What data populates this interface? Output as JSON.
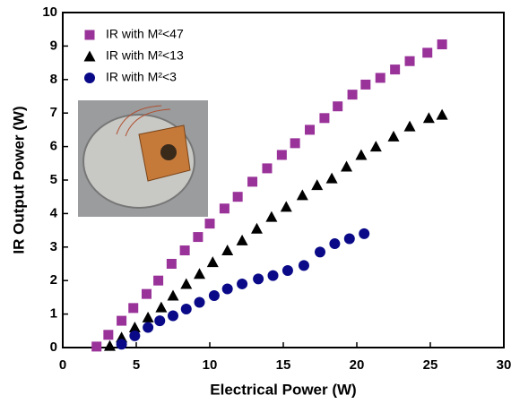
{
  "chart_data": {
    "type": "scatter",
    "xlabel": "Electrical Power (W)",
    "ylabel": "IR Output Power (W)",
    "xlim": [
      0,
      30
    ],
    "ylim": [
      0,
      10
    ],
    "xticks": [
      0,
      5,
      10,
      15,
      20,
      25,
      30
    ],
    "yticks": [
      0,
      1,
      2,
      3,
      4,
      5,
      6,
      7,
      8,
      9,
      10
    ],
    "legend": "upper left",
    "series": [
      {
        "name": "IR with M²<47",
        "color": "#993399",
        "marker": "square",
        "x": [
          2.3,
          3.1,
          4.0,
          4.8,
          5.7,
          6.5,
          7.4,
          8.3,
          9.2,
          10.0,
          11.0,
          11.9,
          12.9,
          13.9,
          14.9,
          15.8,
          16.8,
          17.8,
          18.7,
          19.7,
          20.6,
          21.6,
          22.6,
          23.6,
          24.8,
          25.8
        ],
        "values": [
          0.03,
          0.38,
          0.8,
          1.18,
          1.6,
          2.0,
          2.5,
          2.9,
          3.3,
          3.7,
          4.15,
          4.5,
          4.95,
          5.35,
          5.75,
          6.1,
          6.5,
          6.85,
          7.2,
          7.55,
          7.85,
          8.05,
          8.3,
          8.55,
          8.8,
          9.05
        ]
      },
      {
        "name": "IR with M²<13",
        "color": "#000000",
        "marker": "triangle",
        "x": [
          3.2,
          4.0,
          4.9,
          5.8,
          6.7,
          7.5,
          8.4,
          9.3,
          10.2,
          11.2,
          12.2,
          13.2,
          14.2,
          15.2,
          16.3,
          17.3,
          18.3,
          19.3,
          20.3,
          21.3,
          22.5,
          23.6,
          24.9,
          25.8
        ],
        "values": [
          0.05,
          0.3,
          0.6,
          0.9,
          1.2,
          1.55,
          1.9,
          2.2,
          2.55,
          2.9,
          3.2,
          3.55,
          3.9,
          4.2,
          4.55,
          4.85,
          5.05,
          5.4,
          5.75,
          6.0,
          6.3,
          6.6,
          6.85,
          6.95
        ]
      },
      {
        "name": "IR with M²<3",
        "color": "#0a0a88",
        "marker": "circle",
        "x": [
          4.0,
          4.9,
          5.8,
          6.6,
          7.5,
          8.4,
          9.3,
          10.3,
          11.2,
          12.2,
          13.3,
          14.3,
          15.3,
          16.4,
          17.5,
          18.5,
          19.5,
          20.5
        ],
        "values": [
          0.1,
          0.35,
          0.6,
          0.8,
          0.95,
          1.15,
          1.35,
          1.55,
          1.75,
          1.9,
          2.05,
          2.15,
          2.3,
          2.45,
          2.85,
          3.1,
          3.25,
          3.4
        ]
      }
    ]
  }
}
